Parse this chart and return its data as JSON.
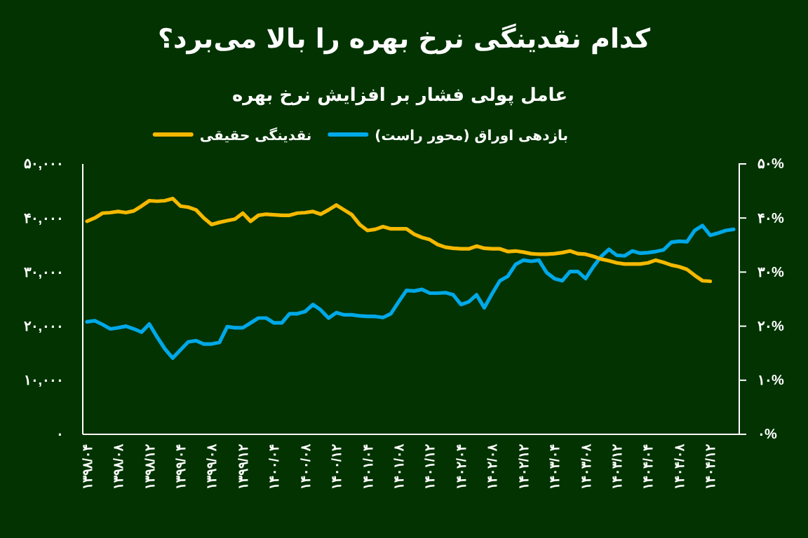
{
  "chart_data": {
    "type": "line",
    "title": "کدام نقدینگی نرخ بهره را بالا می‌برد؟",
    "subtitle": "عامل پولی فشار بر افزایش نرخ بهره",
    "categories": [
      "۱۳۹۸/۰۴",
      null,
      null,
      null,
      "۱۳۹۸/۰۸",
      null,
      null,
      null,
      "۱۳۹۸/۱۲",
      null,
      null,
      null,
      "۱۳۹۹/۰۴",
      null,
      null,
      null,
      "۱۳۹۹/۰۸",
      null,
      null,
      null,
      "۱۳۹۹/۱۲",
      null,
      null,
      null,
      "۱۴۰۰/۰۴",
      null,
      null,
      null,
      "۱۴۰۰/۰۸",
      null,
      null,
      null,
      "۱۴۰۰/۱۲",
      null,
      null,
      null,
      "۱۴۰۱/۰۴",
      null,
      null,
      null,
      "۱۴۰۱/۰۸",
      null,
      null,
      null,
      "۱۴۰۱/۱۲",
      null,
      null,
      null,
      "۱۴۰۲/۰۴",
      null,
      null,
      null,
      "۱۴۰۲/۰۸",
      null,
      null,
      null,
      "۱۴۰۲/۱۲",
      null,
      null,
      null,
      "۱۴۰۳/۰۴",
      null,
      null,
      null,
      "۱۴۰۳/۰۸",
      null,
      null,
      null,
      "۱۴۰۳/۱۲",
      null,
      null,
      null,
      "۱۴۰۴/۰۴",
      null,
      null,
      null,
      "۱۴۰۴/۰۸",
      null,
      null,
      null,
      "۱۴۰۴/۱۲",
      null,
      null,
      null
    ],
    "series": [
      {
        "name": "بازدهی اوراق (محور راست)",
        "color": "#00a8e8",
        "axis": "y2",
        "values": [
          20.8,
          21.0,
          20.3,
          19.5,
          19.7,
          20.0,
          19.5,
          18.9,
          20.4,
          18.0,
          15.8,
          14.1,
          15.6,
          17.1,
          17.3,
          16.7,
          16.7,
          17.0,
          19.9,
          19.7,
          19.7,
          20.6,
          21.5,
          21.5,
          20.6,
          20.6,
          22.3,
          22.3,
          22.7,
          24.0,
          23.0,
          21.5,
          22.5,
          22.1,
          22.1,
          21.9,
          21.8,
          21.8,
          21.6,
          22.3,
          24.5,
          26.6,
          26.5,
          26.8,
          26.1,
          26.1,
          26.2,
          25.8,
          24.0,
          24.5,
          25.8,
          23.4,
          26.0,
          28.4,
          29.2,
          31.4,
          32.2,
          32.0,
          32.2,
          29.9,
          28.8,
          28.4,
          30.1,
          30.1,
          28.8,
          31.0,
          32.9,
          34.2,
          33.1,
          33.0,
          33.9,
          33.5,
          33.6,
          33.8,
          34.1,
          35.5,
          35.7,
          35.6,
          37.7,
          38.6,
          36.8,
          37.2,
          37.7,
          37.9
        ]
      },
      {
        "name": "نقدینگی حقیقی",
        "color": "#f5b800",
        "values": [
          39400,
          40000,
          40900,
          41000,
          41200,
          41000,
          41300,
          42200,
          43200,
          43100,
          43200,
          43600,
          42200,
          42000,
          41500,
          40000,
          38800,
          39200,
          39500,
          39800,
          40900,
          39400,
          40500,
          40700,
          40600,
          40500,
          40500,
          40900,
          41000,
          41200,
          40700,
          41500,
          42400,
          41500,
          40600,
          38800,
          37700,
          37900,
          38400,
          38000,
          38000,
          38000,
          37000,
          36400,
          36000,
          35100,
          34600,
          34400,
          34300,
          34300,
          34800,
          34400,
          34300,
          34300,
          33800,
          33900,
          33700,
          33400,
          33300,
          33300,
          33400,
          33600,
          33900,
          33400,
          33300,
          32900,
          32400,
          32100,
          31700,
          31500,
          31500,
          31500,
          31700,
          32200,
          31800,
          31300,
          31000,
          30500,
          29400,
          28400,
          28300,
          null,
          null,
          null
        ]
      }
    ],
    "ylim": [
      0,
      50000
    ],
    "yticks": [
      {
        "value": 0,
        "label": "۰"
      },
      {
        "value": 10000,
        "label": "۱۰,۰۰۰"
      },
      {
        "value": 20000,
        "label": "۲۰,۰۰۰"
      },
      {
        "value": 30000,
        "label": "۳۰,۰۰۰"
      },
      {
        "value": 40000,
        "label": "۴۰,۰۰۰"
      },
      {
        "value": 50000,
        "label": "۵۰,۰۰۰"
      }
    ],
    "y2lim": [
      0,
      50
    ],
    "y2ticks": [
      {
        "value": 0,
        "label": "۰%"
      },
      {
        "value": 10,
        "label": "۱۰%"
      },
      {
        "value": 20,
        "label": "۲۰%"
      },
      {
        "value": 30,
        "label": "۳۰%"
      },
      {
        "value": 40,
        "label": "۴۰%"
      },
      {
        "value": 50,
        "label": "۵۰%"
      }
    ],
    "legend": "top",
    "grid": false,
    "marker": "none",
    "line_style": "solid"
  }
}
